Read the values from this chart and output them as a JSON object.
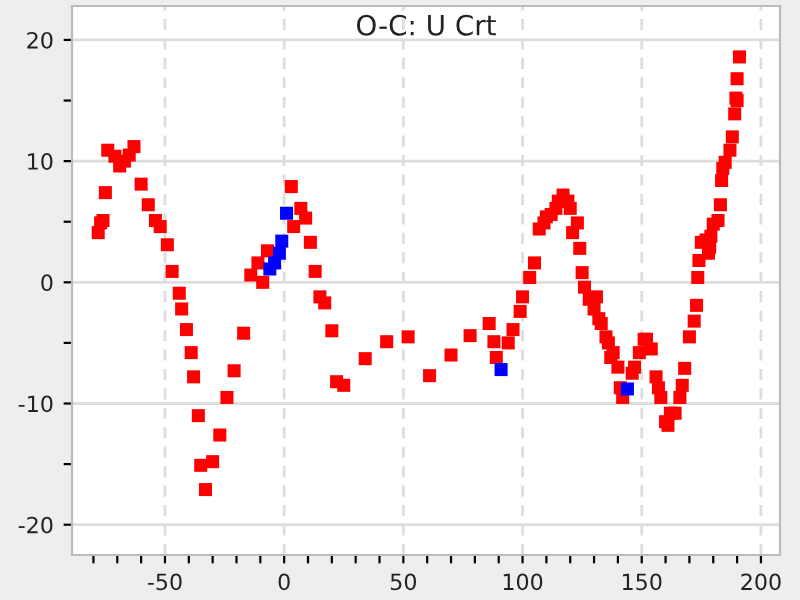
{
  "chart_data": {
    "type": "scatter",
    "title": "O-C: U Crt",
    "marker": "square",
    "grid": true,
    "xlim": [
      -89,
      208
    ],
    "ylim": [
      -22.5,
      22.8
    ],
    "xticks": [
      {
        "value": -80,
        "label": null
      },
      {
        "value": -70,
        "label": null
      },
      {
        "value": -60,
        "label": null
      },
      -50,
      {
        "value": -40,
        "label": null
      },
      {
        "value": -30,
        "label": null
      },
      {
        "value": -20,
        "label": null
      },
      {
        "value": -10,
        "label": null
      },
      0,
      {
        "value": 10,
        "label": null
      },
      {
        "value": 20,
        "label": null
      },
      {
        "value": 30,
        "label": null
      },
      {
        "value": 40,
        "label": null
      },
      50,
      {
        "value": 60,
        "label": null
      },
      {
        "value": 70,
        "label": null
      },
      {
        "value": 80,
        "label": null
      },
      {
        "value": 90,
        "label": null
      },
      100,
      {
        "value": 110,
        "label": null
      },
      {
        "value": 120,
        "label": null
      },
      {
        "value": 130,
        "label": null
      },
      {
        "value": 140,
        "label": null
      },
      150,
      {
        "value": 160,
        "label": null
      },
      {
        "value": 170,
        "label": null
      },
      {
        "value": 180,
        "label": null
      },
      {
        "value": 190,
        "label": null
      },
      200
    ],
    "yticks": [
      -20,
      {
        "value": -15,
        "label": null
      },
      -10,
      {
        "value": -5,
        "label": null
      },
      0,
      {
        "value": 5,
        "label": null
      },
      10,
      {
        "value": 15,
        "label": null
      },
      20
    ],
    "series": [
      {
        "color": "#ff0000",
        "x": [
          -78,
          -77,
          -76,
          -75,
          -74,
          -71,
          -69,
          -67,
          -65,
          -63,
          -60,
          -57,
          -54,
          -52,
          -49,
          -47,
          -44,
          -43,
          -41,
          -39,
          -38,
          -36,
          -35,
          -33,
          -30,
          -27,
          -24,
          -21,
          -17,
          -14,
          -11,
          -9,
          -7,
          3,
          4,
          7,
          9,
          11,
          13,
          15,
          17,
          20,
          22,
          25,
          34,
          43,
          52,
          61,
          70,
          78,
          86,
          88,
          89,
          94,
          96,
          99,
          100,
          103,
          105,
          107,
          109,
          110,
          112,
          114,
          115,
          117,
          119,
          120,
          121,
          123,
          124,
          125,
          126,
          128,
          130,
          131,
          132,
          133,
          135,
          136,
          137,
          138,
          140,
          141,
          142,
          146,
          147,
          149,
          151,
          152,
          154,
          156,
          157,
          158,
          160,
          161,
          162,
          164,
          166,
          167,
          168,
          170,
          172,
          173,
          173.5,
          174,
          175,
          177,
          178,
          178.5,
          179,
          180,
          182,
          183,
          183.5,
          184,
          185,
          187,
          188,
          189,
          189.5,
          190,
          190,
          191
        ],
        "values": [
          4.1,
          4.9,
          5.1,
          7.4,
          10.9,
          10.4,
          9.6,
          10.0,
          10.5,
          11.2,
          8.1,
          6.4,
          5.1,
          4.6,
          3.1,
          0.9,
          -0.9,
          -2.2,
          -3.9,
          -5.8,
          -7.8,
          -11.0,
          -15.1,
          -17.1,
          -14.8,
          -12.6,
          -9.5,
          -7.3,
          -4.2,
          0.6,
          1.6,
          0.0,
          2.6,
          7.9,
          4.6,
          6.1,
          5.3,
          3.3,
          0.9,
          -1.2,
          -1.7,
          -4.0,
          -8.2,
          -8.5,
          -6.3,
          -4.9,
          -4.5,
          -7.7,
          -6.0,
          -4.4,
          -3.4,
          -4.9,
          -6.2,
          -5.0,
          -3.9,
          -2.4,
          -1.2,
          0.4,
          1.6,
          4.4,
          4.9,
          5.4,
          5.6,
          6.1,
          6.7,
          7.2,
          6.7,
          6.1,
          4.1,
          4.9,
          2.8,
          0.8,
          -0.4,
          -1.4,
          -2.2,
          -1.2,
          -3.0,
          -3.4,
          -4.5,
          -5.0,
          -6.2,
          -5.8,
          -7.0,
          -8.7,
          -9.5,
          -7.5,
          -7.0,
          -5.8,
          -4.7,
          -4.7,
          -5.5,
          -7.8,
          -8.7,
          -9.5,
          -11.5,
          -11.8,
          -10.8,
          -10.8,
          -9.5,
          -8.5,
          -7.1,
          -4.5,
          -3.2,
          -1.9,
          0.4,
          1.8,
          3.3,
          3.5,
          2.4,
          2.9,
          3.8,
          4.8,
          5.1,
          6.4,
          8.4,
          9.4,
          9.9,
          10.9,
          12.0,
          13.9,
          15.2,
          15.0,
          16.8,
          18.6
        ]
      },
      {
        "color": "#0000ff",
        "x": [
          -6,
          -4,
          -2,
          -1,
          1,
          91,
          144
        ],
        "values": [
          1.1,
          1.6,
          2.4,
          3.4,
          5.7,
          -7.2,
          -8.8
        ]
      }
    ]
  }
}
